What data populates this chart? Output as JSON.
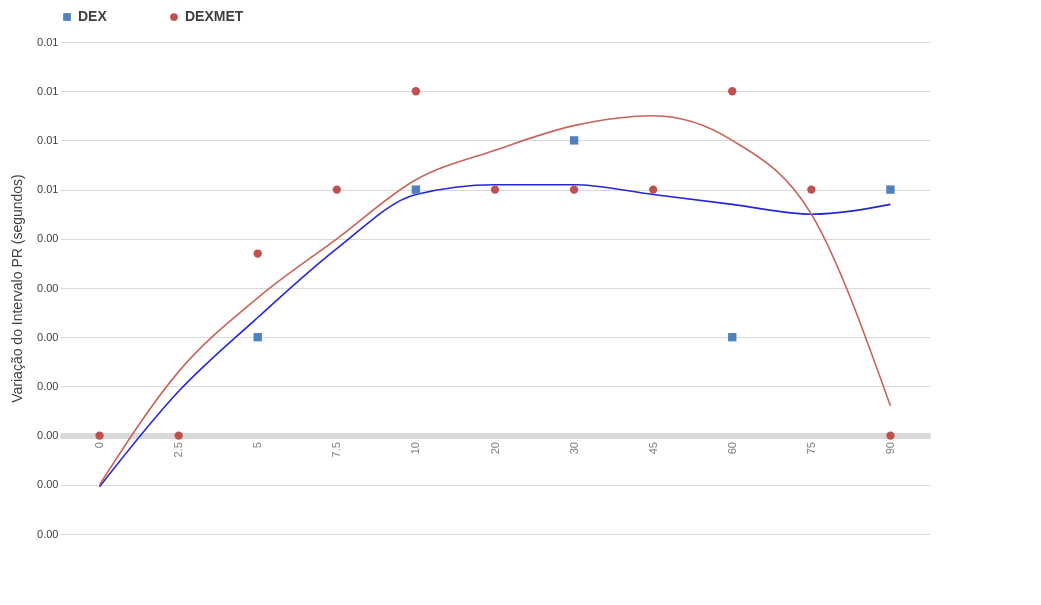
{
  "chart_data": {
    "type": "scatter",
    "ylabel": "Variação do Intervalo PR (segundos)",
    "categories": [
      "0",
      "2.5",
      "5",
      "7.5",
      "10",
      "20",
      "30",
      "45",
      "60",
      "75",
      "90"
    ],
    "ylim": [
      -0.002,
      0.008
    ],
    "yticks": [
      {
        "value": -0.002,
        "label": "0.00"
      },
      {
        "value": -0.001,
        "label": "0.00"
      },
      {
        "value": 0,
        "label": "0.00"
      },
      {
        "value": 0.001,
        "label": "0.00"
      },
      {
        "value": 0.002,
        "label": "0.00"
      },
      {
        "value": 0.003,
        "label": "0.00"
      },
      {
        "value": 0.004,
        "label": "0.00"
      },
      {
        "value": 0.005,
        "label": "0.01"
      },
      {
        "value": 0.006,
        "label": "0.01"
      },
      {
        "value": 0.007,
        "label": "0.01"
      },
      {
        "value": 0.008,
        "label": "0.01"
      }
    ],
    "grid": "y",
    "legend": "top",
    "series": [
      {
        "name": "DEX",
        "marker": "square",
        "color": "#4f81bd",
        "values": [
          null,
          null,
          0.002,
          null,
          0.005,
          null,
          0.006,
          null,
          0.002,
          null,
          0.005
        ]
      },
      {
        "name": "DEXMET",
        "marker": "circle",
        "color": "#c0504d",
        "values": [
          0,
          0,
          0.0037,
          0.005,
          0.007,
          0.005,
          0.005,
          0.005,
          0.007,
          0.005,
          0
        ]
      },
      {
        "type": "line",
        "color": "#2626d9",
        "x": [
          "0",
          "2.5",
          "5",
          "7.5",
          "10",
          "20",
          "30",
          "45",
          "60",
          "75",
          "90"
        ],
        "values": [
          -0.00104,
          0.0009,
          0.0024,
          0.0038,
          0.0049,
          0.0051,
          0.0051,
          0.0049,
          0.0047,
          0.0045,
          0.0047
        ]
      },
      {
        "type": "line",
        "color": "#c8645a",
        "x": [
          "0",
          "2.5",
          "5",
          "7.5",
          "10",
          "20",
          "30",
          "45",
          "60",
          "75",
          "90"
        ],
        "values": [
          -0.001,
          0.0013,
          0.0028,
          0.004,
          0.0052,
          0.0058,
          0.0063,
          0.0065,
          0.006,
          0.0045,
          0.0006
        ]
      }
    ]
  }
}
